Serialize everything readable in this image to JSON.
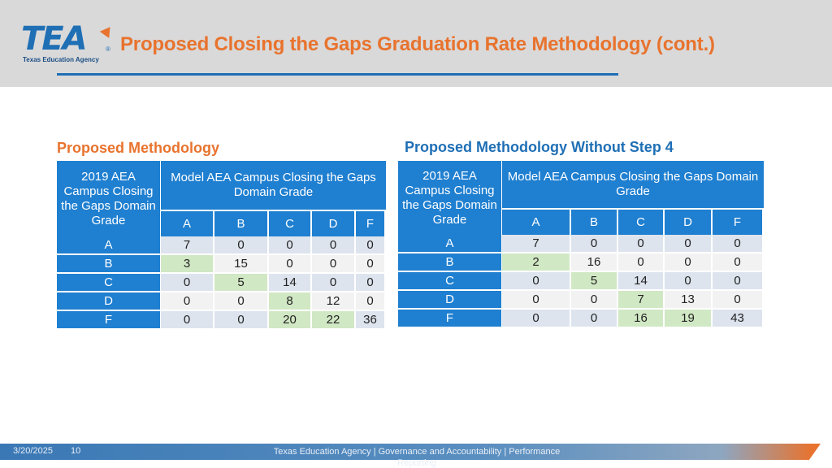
{
  "header": {
    "logo_text": "TEA",
    "logo_registered": "®",
    "logo_subtitle": "Texas Education Agency",
    "title": "Proposed Closing the Gaps Graduation Rate Methodology (cont.)"
  },
  "left_table": {
    "section_title": "Proposed Methodology",
    "row_header": "2019 AEA Campus Closing the Gaps Domain Grade",
    "col_header": "Model AEA Campus Closing the Gaps Domain Grade",
    "columns": [
      "A",
      "B",
      "C",
      "D",
      "F"
    ],
    "rows": [
      {
        "label": "A",
        "values": [
          "7",
          "0",
          "0",
          "0",
          "0"
        ]
      },
      {
        "label": "B",
        "values": [
          "3",
          "15",
          "0",
          "0",
          "0"
        ]
      },
      {
        "label": "C",
        "values": [
          "0",
          "5",
          "14",
          "0",
          "0"
        ]
      },
      {
        "label": "D",
        "values": [
          "0",
          "0",
          "8",
          "12",
          "0"
        ]
      },
      {
        "label": "F",
        "values": [
          "0",
          "0",
          "20",
          "22",
          "36"
        ]
      }
    ]
  },
  "right_table": {
    "section_title": "Proposed Methodology Without Step 4",
    "row_header": "2019 AEA Campus Closing the Gaps Domain Grade",
    "col_header": "Model AEA Campus Closing the Gaps Domain Grade",
    "columns": [
      "A",
      "B",
      "C",
      "D",
      "F"
    ],
    "rows": [
      {
        "label": "A",
        "values": [
          "7",
          "0",
          "0",
          "0",
          "0"
        ]
      },
      {
        "label": "B",
        "values": [
          "2",
          "16",
          "0",
          "0",
          "0"
        ]
      },
      {
        "label": "C",
        "values": [
          "0",
          "5",
          "14",
          "0",
          "0"
        ]
      },
      {
        "label": "D",
        "values": [
          "0",
          "0",
          "7",
          "13",
          "0"
        ]
      },
      {
        "label": "F",
        "values": [
          "0",
          "0",
          "16",
          "19",
          "43"
        ]
      }
    ]
  },
  "footer": {
    "date": "3/20/2025",
    "page": "10",
    "org": "Texas Education Agency | Governance and Accountability | Performance Reporting"
  },
  "colors": {
    "accent_orange": "#e8732e",
    "brand_blue": "#1f7fd0",
    "highlight_green": "#d1e8c4"
  }
}
